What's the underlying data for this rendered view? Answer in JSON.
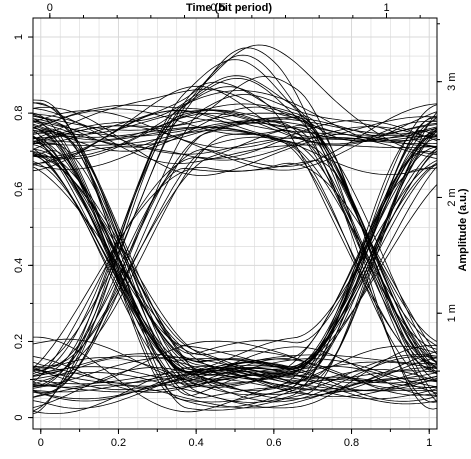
{
  "chart_data": {
    "type": "line",
    "title": "",
    "xlabel": "",
    "ylabel": "",
    "top_axis": {
      "label": "Time (bit period)",
      "range": [
        -0.05,
        1.15
      ],
      "ticks": [
        "0",
        "0.5",
        "1"
      ],
      "tick_values": [
        0,
        0.5,
        1
      ]
    },
    "right_axis": {
      "label": "Amplitude (a.u.)",
      "range": [
        0.0,
        0.00355
      ],
      "ticks": [
        "1 m",
        "2 m",
        "3 m"
      ],
      "tick_values": [
        0.001,
        0.002,
        0.003
      ]
    },
    "x_ticks": [
      "0",
      "0.2",
      "0.4",
      "0.6",
      "0.8",
      "1"
    ],
    "x_tick_values": [
      0,
      0.2,
      0.4,
      0.6,
      0.8,
      1.0
    ],
    "xlim": [
      -0.02,
      1.02
    ],
    "y_ticks": [
      "0",
      "0.2",
      "0.4",
      "0.6",
      "0.8",
      "1"
    ],
    "y_tick_values": [
      0,
      0.2,
      0.4,
      0.6,
      0.8,
      1.0
    ],
    "ylim": [
      -0.03,
      1.05
    ],
    "grid": true,
    "legend": "none",
    "eye_diagram": {
      "high_level_mean": 0.74,
      "low_level_mean": 0.1,
      "crossing_level": 0.42,
      "crossing_times": [
        0.2,
        0.84
      ],
      "traces": 100,
      "max_peak": 0.97
    },
    "colors": {
      "trace": "#000000",
      "grid": "#d8d8d8",
      "frame": "#000000",
      "background": "#ffffff"
    }
  }
}
